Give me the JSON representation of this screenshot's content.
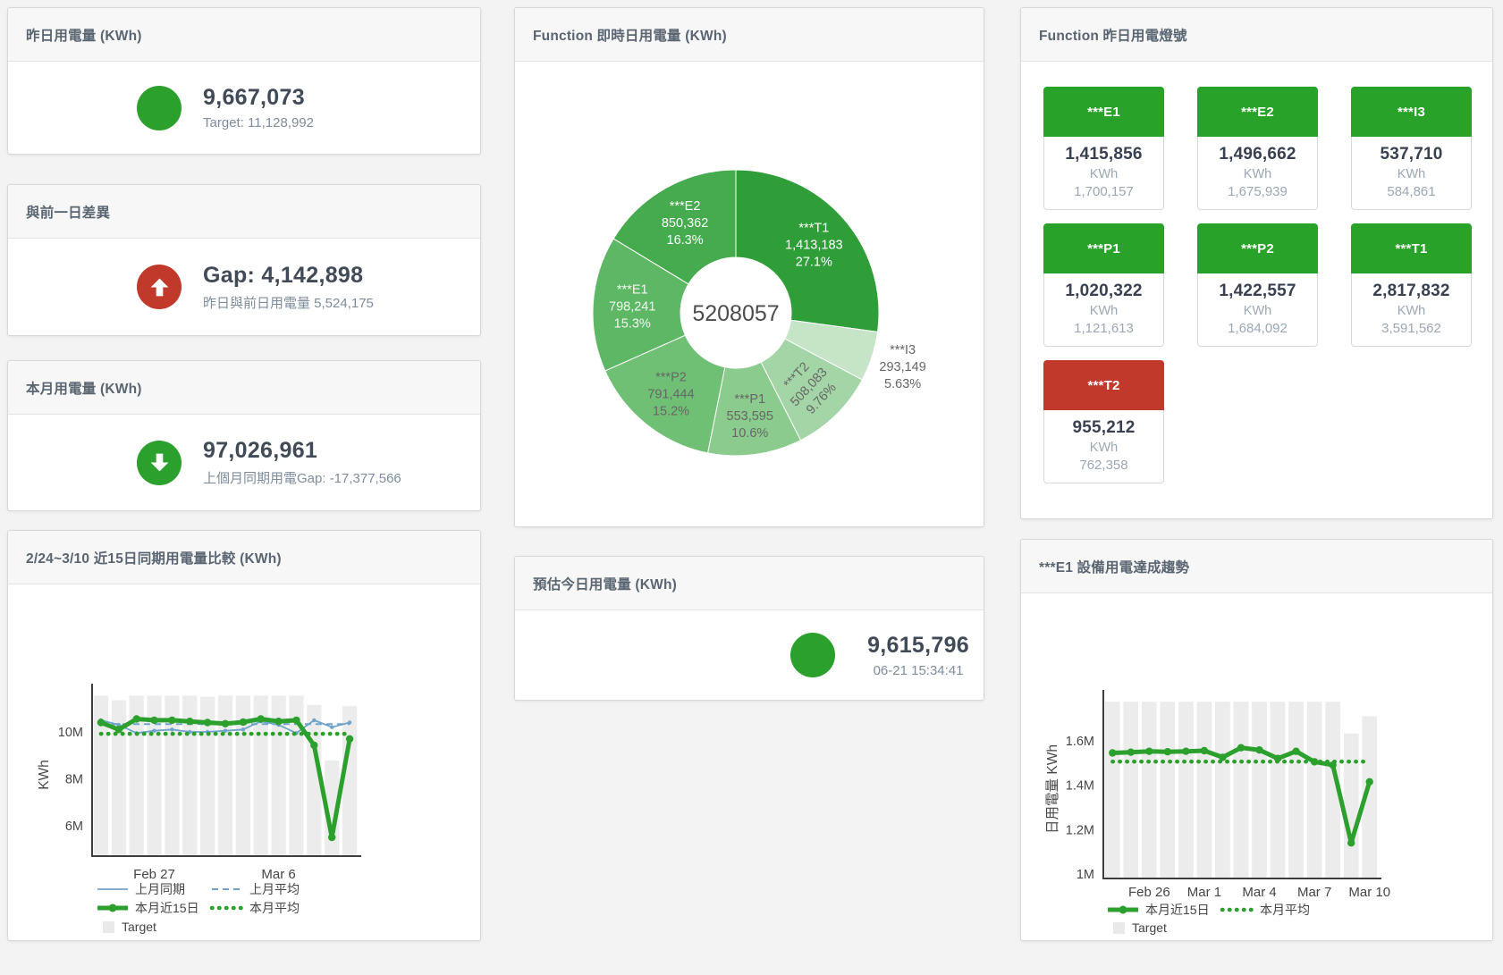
{
  "cards": {
    "yesterday": {
      "title": "昨日用電量 (KWh)",
      "value": "9,667,073",
      "subtitle": "Target: 11,128,992"
    },
    "day_gap": {
      "title": "與前一日差異",
      "value": "Gap: 4,142,898",
      "subtitle": "昨日與前日用電量 5,524,175",
      "direction": "up"
    },
    "month": {
      "title": "本月用電量 (KWh)",
      "value": "97,026,961",
      "subtitle": "上個月同期用電Gap: -17,377,566",
      "direction": "down"
    },
    "forecast": {
      "title": "預估今日用電量 (KWh)",
      "value": "9,615,796",
      "subtitle": "06-21 15:34:41"
    }
  },
  "lights_card": {
    "title": "Function 昨日用電燈號",
    "unit": "KWh",
    "tiles": [
      {
        "name": "***E1",
        "value": "1,415,856",
        "unit": "KWh",
        "target": "1,700,157",
        "status": "green"
      },
      {
        "name": "***E2",
        "value": "1,496,662",
        "unit": "KWh",
        "target": "1,675,939",
        "status": "green"
      },
      {
        "name": "***I3",
        "value": "537,710",
        "unit": "KWh",
        "target": "584,861",
        "status": "green"
      },
      {
        "name": "***P1",
        "value": "1,020,322",
        "unit": "KWh",
        "target": "1,121,613",
        "status": "green"
      },
      {
        "name": "***P2",
        "value": "1,422,557",
        "unit": "KWh",
        "target": "1,684,092",
        "status": "green"
      },
      {
        "name": "***T1",
        "value": "2,817,832",
        "unit": "KWh",
        "target": "3,591,562",
        "status": "green"
      },
      {
        "name": "***T2",
        "value": "955,212",
        "unit": "KWh",
        "target": "762,358",
        "status": "red"
      }
    ]
  },
  "colors": {
    "green": "#2ca02c",
    "red": "#c0392b",
    "blue": "#6fa3cc",
    "bar_gray": "#ececec",
    "tile_green": "#28a228",
    "tile_red": "#c0392b"
  },
  "chart_data": [
    {
      "type": "pie",
      "title": "Function 即時日用電量 (KWh)",
      "center_label": "5208057",
      "legend_position": "none",
      "slices": [
        {
          "name": "***T1",
          "value": 1413183,
          "value_label": "1,413,183",
          "pct": "27.1%",
          "color": "#2f9e38",
          "label_color": "#ffffff"
        },
        {
          "name": "***I3",
          "value": 293149,
          "value_label": "293,149",
          "pct": "5.63%",
          "color": "#c6e5c7",
          "label_color": "#666666",
          "label_outside": true
        },
        {
          "name": "***T2",
          "value": 508083,
          "value_label": "508,083",
          "pct": "9.76%",
          "color": "#a4d5a6",
          "label_color": "#666666",
          "label_rotate": -47
        },
        {
          "name": "***P1",
          "value": 553595,
          "value_label": "553,595",
          "pct": "10.6%",
          "color": "#8bcb8e",
          "label_color": "#666666"
        },
        {
          "name": "***P2",
          "value": 791444,
          "value_label": "791,444",
          "pct": "15.2%",
          "color": "#6fc075",
          "label_color": "#666666"
        },
        {
          "name": "***E1",
          "value": 798241,
          "value_label": "798,241",
          "pct": "15.3%",
          "color": "#5eb765",
          "label_color": "#f2f8f2"
        },
        {
          "name": "***E2",
          "value": 850362,
          "value_label": "850,362",
          "pct": "16.3%",
          "color": "#46aa4e",
          "label_color": "#ffffff"
        }
      ]
    },
    {
      "type": "line",
      "title": "2/24~3/10 近15日同期用電量比較 (KWh)",
      "ylabel": "KWh",
      "unit": "millions of KWh",
      "grid": false,
      "categories": [
        "2/24",
        "2/25",
        "2/26",
        "2/27",
        "2/28",
        "3/1",
        "3/2",
        "3/3",
        "3/4",
        "3/5",
        "3/6",
        "3/7",
        "3/8",
        "3/9",
        "3/10"
      ],
      "ylim": [
        4.7,
        11.6
      ],
      "yticks": [
        {
          "v": 6,
          "label": "6M"
        },
        {
          "v": 8,
          "label": "8M"
        },
        {
          "v": 10,
          "label": "10M"
        }
      ],
      "xticks": [
        {
          "i": 3,
          "label": "Feb 27"
        },
        {
          "i": 10,
          "label": "Mar 6"
        }
      ],
      "series": [
        {
          "name": "Target",
          "type": "bar",
          "color": "#ececec",
          "values": [
            11.55,
            11.35,
            11.55,
            11.55,
            11.55,
            11.55,
            11.5,
            11.55,
            11.55,
            11.55,
            11.55,
            11.55,
            11.15,
            8.78,
            11.1
          ]
        },
        {
          "name": "上月平均",
          "type": "line",
          "style": "dashed",
          "color": "#6fa3cc",
          "values": [
            10.33,
            10.33,
            10.33,
            10.33,
            10.33,
            10.33,
            10.33,
            10.33,
            10.33,
            10.33,
            10.33,
            10.33,
            10.33,
            10.33,
            10.33
          ]
        },
        {
          "name": "上月同期",
          "type": "line",
          "style": "thin",
          "color": "#6fa3cc",
          "values": [
            10.5,
            10.3,
            9.95,
            10.05,
            10.1,
            10.0,
            10.0,
            10.05,
            10.1,
            10.45,
            10.3,
            9.95,
            10.5,
            10.2,
            10.4
          ]
        },
        {
          "name": "本月平均",
          "type": "line",
          "style": "dotted",
          "color": "#2ca02c",
          "values": [
            9.92,
            9.92,
            9.92,
            9.92,
            9.92,
            9.92,
            9.92,
            9.92,
            9.92,
            9.92,
            9.92,
            9.92,
            9.92,
            9.92,
            9.92
          ]
        },
        {
          "name": "本月近15日",
          "type": "line",
          "style": "thick",
          "color": "#2ca02c",
          "values": [
            10.4,
            10.1,
            10.55,
            10.5,
            10.5,
            10.45,
            10.4,
            10.35,
            10.42,
            10.55,
            10.45,
            10.5,
            9.43,
            5.5,
            9.7
          ]
        }
      ],
      "legend_rows": [
        [
          {
            "label": "上月同期",
            "swatch": "thin",
            "color": "#6fa3cc"
          },
          {
            "label": "上月平均",
            "swatch": "dashed",
            "color": "#6fa3cc"
          }
        ],
        [
          {
            "label": "本月近15日",
            "swatch": "thick",
            "color": "#2ca02c"
          },
          {
            "label": "本月平均",
            "swatch": "dotted",
            "color": "#2ca02c"
          }
        ],
        [
          {
            "label": "Target",
            "swatch": "square",
            "color": "#e9e9e9"
          }
        ]
      ]
    },
    {
      "type": "line",
      "title": "***E1 設備用電達成趨勢",
      "ylabel": "日用電量 KWh",
      "unit": "millions of KWh",
      "grid": false,
      "categories": [
        "2/24",
        "2/25",
        "2/26",
        "2/27",
        "2/28",
        "3/1",
        "3/2",
        "3/3",
        "3/4",
        "3/5",
        "3/6",
        "3/7",
        "3/8",
        "3/9",
        "3/10"
      ],
      "ylim": [
        0.98,
        1.78
      ],
      "yticks": [
        {
          "v": 1,
          "label": "1M"
        },
        {
          "v": 1.2,
          "label": "1.2M"
        },
        {
          "v": 1.4,
          "label": "1.4M"
        },
        {
          "v": 1.6,
          "label": "1.6M"
        }
      ],
      "xticks": [
        {
          "i": 2,
          "label": "Feb 26"
        },
        {
          "i": 5,
          "label": "Mar 1"
        },
        {
          "i": 8,
          "label": "Mar 4"
        },
        {
          "i": 11,
          "label": "Mar 7"
        },
        {
          "i": 14,
          "label": "Mar 10"
        }
      ],
      "series": [
        {
          "name": "Target",
          "type": "bar",
          "color": "#ececec",
          "values": [
            1.775,
            1.775,
            1.775,
            1.775,
            1.775,
            1.775,
            1.775,
            1.775,
            1.775,
            1.775,
            1.775,
            1.775,
            1.775,
            1.632,
            1.71
          ]
        },
        {
          "name": "本月平均",
          "type": "line",
          "style": "dotted",
          "color": "#2ca02c",
          "values": [
            1.506,
            1.506,
            1.506,
            1.506,
            1.506,
            1.506,
            1.506,
            1.506,
            1.506,
            1.506,
            1.506,
            1.506,
            1.506,
            1.506,
            1.506
          ]
        },
        {
          "name": "本月近15日",
          "type": "line",
          "style": "thick",
          "color": "#2ca02c",
          "values": [
            1.545,
            1.548,
            1.552,
            1.55,
            1.552,
            1.555,
            1.525,
            1.568,
            1.558,
            1.52,
            1.552,
            1.505,
            1.49,
            1.14,
            1.415
          ]
        }
      ],
      "legend_rows": [
        [
          {
            "label": "本月近15日",
            "swatch": "thick",
            "color": "#2ca02c"
          },
          {
            "label": "本月平均",
            "swatch": "dotted",
            "color": "#2ca02c"
          }
        ],
        [
          {
            "label": "Target",
            "swatch": "square",
            "color": "#e9e9e9"
          }
        ]
      ]
    }
  ]
}
